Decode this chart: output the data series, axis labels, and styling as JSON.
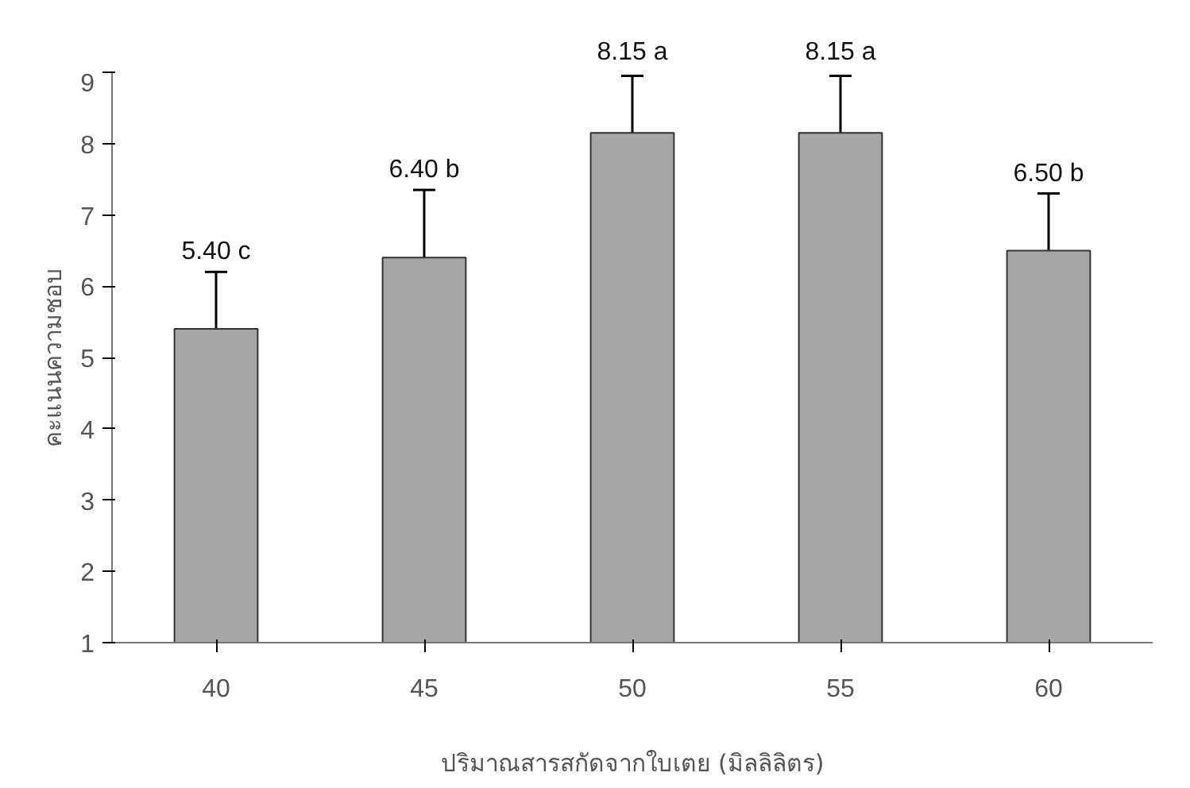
{
  "chart_data": {
    "type": "bar",
    "xlabel": "ปริมาณสารสกัดจากใบเตย (มิลลิลิตร)",
    "ylabel": "คะแนนความชอบ",
    "categories": [
      "40",
      "45",
      "50",
      "55",
      "60"
    ],
    "values": [
      5.4,
      6.4,
      8.15,
      8.15,
      6.5
    ],
    "errors": [
      0.8,
      0.95,
      0.8,
      0.8,
      0.8
    ],
    "value_labels": [
      "5.40 c",
      "6.40 b",
      "8.15 a",
      "8.15 a",
      "6.50 b"
    ],
    "color": "#a6a6a6",
    "ylim": [
      1,
      9
    ],
    "yticks": [
      1,
      2,
      3,
      4,
      5,
      6,
      7,
      8,
      9
    ],
    "grid": false
  }
}
